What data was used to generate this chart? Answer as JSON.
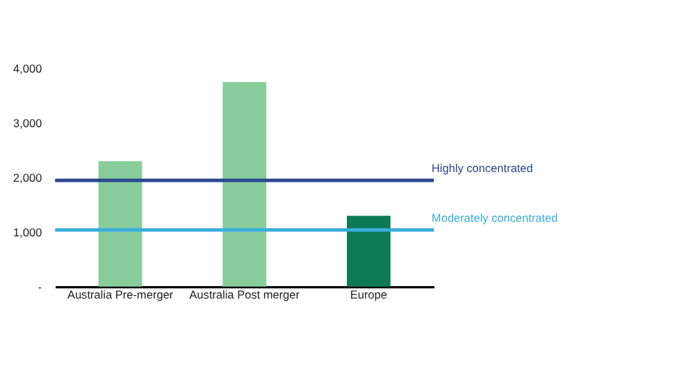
{
  "chart_data": {
    "type": "bar",
    "categories": [
      "Australia Pre-merger",
      "Australia Post merger",
      "Europe"
    ],
    "values": [
      2300,
      3750,
      1300
    ],
    "colors": [
      "#88cc9c",
      "#88cc9c",
      "#0e7a55"
    ],
    "ylim": [
      0,
      4000
    ],
    "yticks": [
      {
        "value": 0,
        "label": "-"
      },
      {
        "value": 1000,
        "label": "1,000"
      },
      {
        "value": 2000,
        "label": "2,000"
      },
      {
        "value": 3000,
        "label": "3,000"
      },
      {
        "value": 4000,
        "label": "4,000"
      }
    ],
    "ref_lines": [
      {
        "axis": "y",
        "value": 1950,
        "label": "Highly concentrated",
        "color": "#2b478b"
      },
      {
        "axis": "y",
        "value": 1040,
        "label": "Moderately concentrated",
        "color": "#3aaedc"
      }
    ],
    "grid": false
  }
}
